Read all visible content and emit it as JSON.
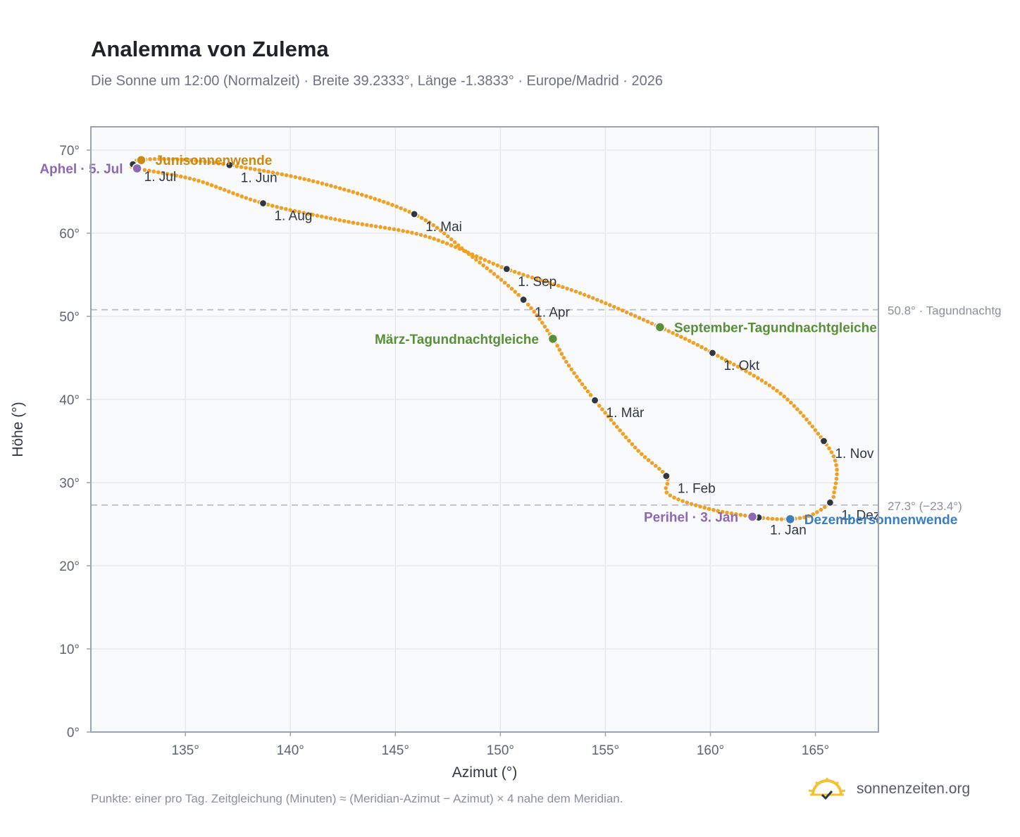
{
  "title": "Analemma von Zulema",
  "subtitle": "Die Sonne um 12:00 (Normalzeit) · Breite 39.2333°, Länge -1.3833° · Europe/Madrid · 2026",
  "footnote": "Punkte: einer pro Tag. Zeitgleichung (Minuten) ≈ (Meridian-Azimut − Azimut) × 4 nahe dem Meridian.",
  "brand": {
    "name": "sonnenzeiten.org",
    "icon": "sun-check-icon"
  },
  "colors": {
    "curve": "#f0a024",
    "month_marker": "#2f3640",
    "equinox": "#5a8f3a",
    "june_solstice": "#c98a12",
    "december_solstice": "#3a7ec0",
    "apsis": "#8e67b5",
    "plot_bg": "#f8fafc",
    "grid": "#e5e8ec",
    "frame": "#9aa3ae",
    "reference_line": "#b9bec6"
  },
  "chart_data": {
    "type": "scatter",
    "xlabel": "Azimut (°)",
    "ylabel": "Höhe (°)",
    "xlim": [
      130.5,
      168
    ],
    "ylim": [
      0,
      72.8
    ],
    "xticks": [
      135,
      140,
      145,
      150,
      155,
      160,
      165
    ],
    "yticks": [
      0,
      10,
      20,
      30,
      40,
      50,
      60,
      70
    ],
    "tick_suffix": "°",
    "grid": true,
    "series": [
      {
        "key": "curve",
        "points": [
          [
            162.3,
            25.8
          ],
          [
            160.0,
            26.8
          ],
          [
            158.0,
            28.6
          ],
          [
            157.9,
            30.8
          ],
          [
            156.5,
            34.0
          ],
          [
            154.5,
            39.9
          ],
          [
            153.2,
            44.3
          ],
          [
            152.5,
            47.3
          ],
          [
            151.1,
            52.0
          ],
          [
            148.5,
            57.5
          ],
          [
            145.9,
            62.3
          ],
          [
            141.5,
            66.0
          ],
          [
            137.1,
            68.2
          ],
          [
            134.5,
            68.9
          ],
          [
            132.8,
            68.8
          ],
          [
            132.5,
            68.3
          ],
          [
            132.7,
            67.8
          ],
          [
            135.5,
            66.4
          ],
          [
            138.7,
            63.6
          ],
          [
            142.5,
            61.5
          ],
          [
            146.5,
            59.6
          ],
          [
            150.3,
            55.7
          ],
          [
            153.9,
            52.7
          ],
          [
            157.6,
            48.7
          ],
          [
            160.1,
            45.6
          ],
          [
            163.3,
            40.8
          ],
          [
            165.4,
            35.0
          ],
          [
            166.0,
            32.0
          ],
          [
            165.9,
            29.0
          ],
          [
            165.7,
            27.6
          ],
          [
            164.7,
            26.0
          ],
          [
            163.5,
            25.6
          ],
          [
            162.3,
            25.8
          ]
        ]
      }
    ],
    "month_markers": [
      {
        "label": "1. Jan",
        "x": 162.3,
        "y": 25.8
      },
      {
        "label": "1. Feb",
        "x": 157.9,
        "y": 30.8
      },
      {
        "label": "1. Mär",
        "x": 154.5,
        "y": 39.9
      },
      {
        "label": "1. Apr",
        "x": 151.1,
        "y": 52.0
      },
      {
        "label": "1. Mai",
        "x": 145.9,
        "y": 62.3
      },
      {
        "label": "1. Jun",
        "x": 137.1,
        "y": 68.2
      },
      {
        "label": "1. Jul",
        "x": 132.5,
        "y": 68.3
      },
      {
        "label": "1. Aug",
        "x": 138.7,
        "y": 63.6
      },
      {
        "label": "1. Sep",
        "x": 150.3,
        "y": 55.7
      },
      {
        "label": "1. Okt",
        "x": 160.1,
        "y": 45.6
      },
      {
        "label": "1. Nov",
        "x": 165.4,
        "y": 35.0
      },
      {
        "label": "1. Dez",
        "x": 165.7,
        "y": 27.6
      }
    ],
    "events": [
      {
        "label": "März-Tagundnachtgleiche",
        "x": 152.5,
        "y": 47.3,
        "color_key": "equinox",
        "side": "left"
      },
      {
        "label": "September-Tagundnachtgleiche",
        "x": 157.6,
        "y": 48.7,
        "color_key": "equinox",
        "side": "right"
      },
      {
        "label": "Junisonnenwende",
        "x": 132.9,
        "y": 68.8,
        "color_key": "june_solstice",
        "side": "right"
      },
      {
        "label": "Dezembersonnenwende",
        "x": 163.8,
        "y": 25.6,
        "color_key": "december_solstice",
        "side": "right"
      },
      {
        "label": "Aphel · 5. Jul",
        "x": 132.7,
        "y": 67.8,
        "color_key": "apsis",
        "side": "left"
      },
      {
        "label": "Perihel · 3. Jan",
        "x": 162.0,
        "y": 25.9,
        "color_key": "apsis",
        "side": "left"
      }
    ],
    "reference_lines": [
      {
        "y": 50.8,
        "label": "50.8° · Tagundnachtg"
      },
      {
        "y": 27.3,
        "label": "27.3° (−23.4°)"
      }
    ]
  }
}
